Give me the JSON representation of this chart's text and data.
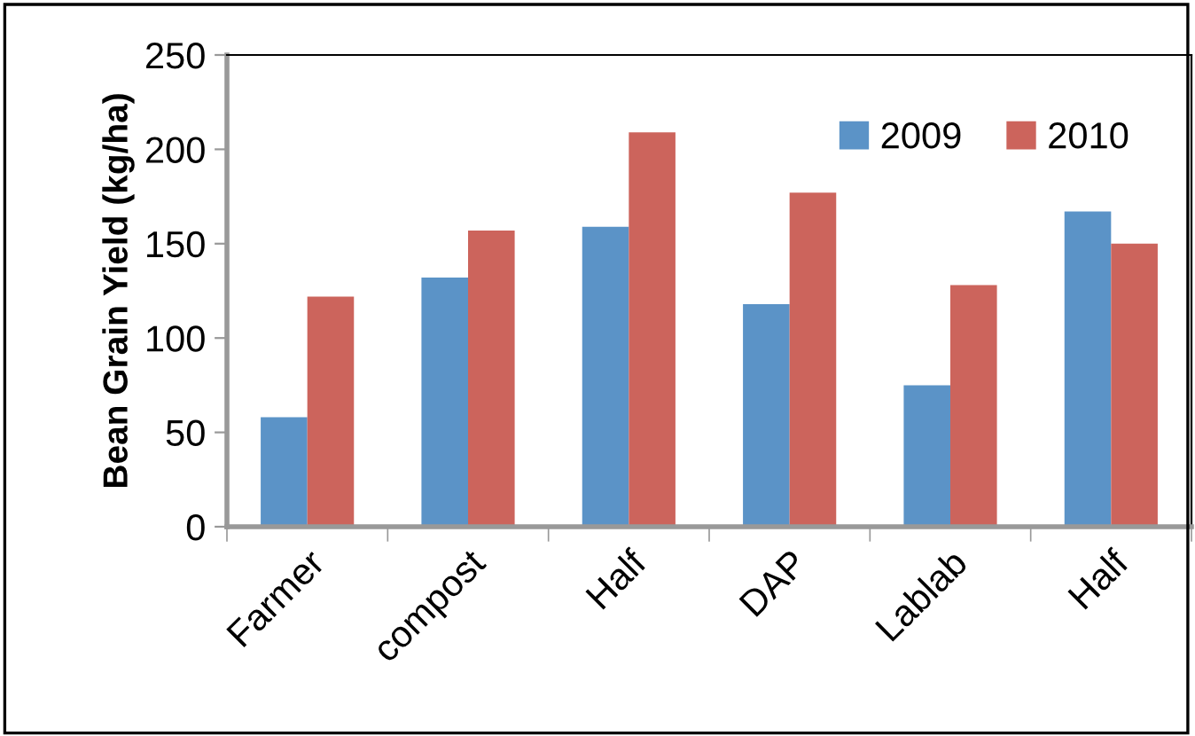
{
  "chart_data": {
    "type": "bar",
    "ylabel": "Bean Grain Yield (kg/ha)",
    "categories": [
      "Farmer",
      "compost",
      "Half",
      "DAP",
      "Lablab",
      "Half"
    ],
    "series": [
      {
        "name": "2009",
        "color": "#5b93c7",
        "values": [
          58,
          132,
          159,
          118,
          75,
          167
        ]
      },
      {
        "name": "2010",
        "color": "#cc645c",
        "values": [
          122,
          157,
          209,
          177,
          128,
          150
        ]
      }
    ],
    "ylim": [
      0,
      250
    ],
    "yticks": [
      0,
      50,
      100,
      150,
      200,
      250
    ],
    "grid": false,
    "legend": "top right"
  }
}
